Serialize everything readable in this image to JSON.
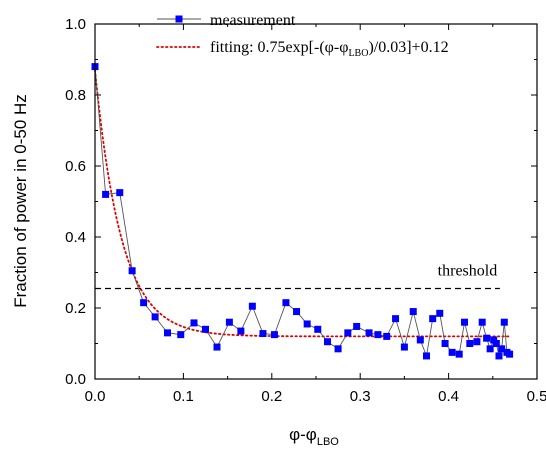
{
  "chart_data": {
    "type": "scatter",
    "xlabel": "φ-φ",
    "xlabel_sub": "LBO",
    "ylabel": "Fraction of power in 0-50 Hz",
    "xlim": [
      0,
      0.5
    ],
    "ylim": [
      0,
      1.0
    ],
    "x_ticks": [
      "0.0",
      "0.1",
      "0.2",
      "0.3",
      "0.4",
      "0.5"
    ],
    "y_ticks": [
      "0.0",
      "0.2",
      "0.4",
      "0.6",
      "0.8",
      "1.0"
    ],
    "legend": [
      {
        "key": "measurement",
        "label": "measurement"
      },
      {
        "key": "fitting",
        "label": "fitting: 0.75exp[-(φ-φ",
        "label_sub": "LBO",
        "label_tail": ")/0.03]+0.12"
      }
    ],
    "threshold": {
      "value": 0.255,
      "label": "threshold"
    },
    "fit": {
      "a": 0.75,
      "tau": 0.03,
      "c": 0.12,
      "x_range": [
        0,
        0.47
      ]
    },
    "series": [
      {
        "name": "measurement",
        "color": "#0000ff",
        "line_color": "#555555",
        "points": [
          [
            0.0,
            0.88
          ],
          [
            0.012,
            0.52
          ],
          [
            0.028,
            0.525
          ],
          [
            0.042,
            0.305
          ],
          [
            0.055,
            0.215
          ],
          [
            0.068,
            0.175
          ],
          [
            0.082,
            0.13
          ],
          [
            0.097,
            0.125
          ],
          [
            0.112,
            0.158
          ],
          [
            0.125,
            0.14
          ],
          [
            0.138,
            0.09
          ],
          [
            0.152,
            0.16
          ],
          [
            0.165,
            0.135
          ],
          [
            0.178,
            0.205
          ],
          [
            0.19,
            0.128
          ],
          [
            0.203,
            0.125
          ],
          [
            0.216,
            0.215
          ],
          [
            0.228,
            0.19
          ],
          [
            0.24,
            0.155
          ],
          [
            0.252,
            0.14
          ],
          [
            0.263,
            0.105
          ],
          [
            0.275,
            0.085
          ],
          [
            0.286,
            0.13
          ],
          [
            0.296,
            0.148
          ],
          [
            0.31,
            0.13
          ],
          [
            0.32,
            0.125
          ],
          [
            0.33,
            0.12
          ],
          [
            0.34,
            0.17
          ],
          [
            0.35,
            0.09
          ],
          [
            0.36,
            0.19
          ],
          [
            0.368,
            0.11
          ],
          [
            0.375,
            0.065
          ],
          [
            0.382,
            0.17
          ],
          [
            0.39,
            0.185
          ],
          [
            0.396,
            0.1
          ],
          [
            0.404,
            0.075
          ],
          [
            0.412,
            0.07
          ],
          [
            0.418,
            0.16
          ],
          [
            0.424,
            0.1
          ],
          [
            0.432,
            0.105
          ],
          [
            0.438,
            0.16
          ],
          [
            0.443,
            0.115
          ],
          [
            0.447,
            0.085
          ],
          [
            0.451,
            0.11
          ],
          [
            0.454,
            0.1
          ],
          [
            0.457,
            0.065
          ],
          [
            0.46,
            0.085
          ],
          [
            0.463,
            0.16
          ],
          [
            0.466,
            0.075
          ],
          [
            0.469,
            0.07
          ]
        ]
      },
      {
        "name": "fitting",
        "color": "#dd0000",
        "style": "dotted"
      }
    ]
  }
}
